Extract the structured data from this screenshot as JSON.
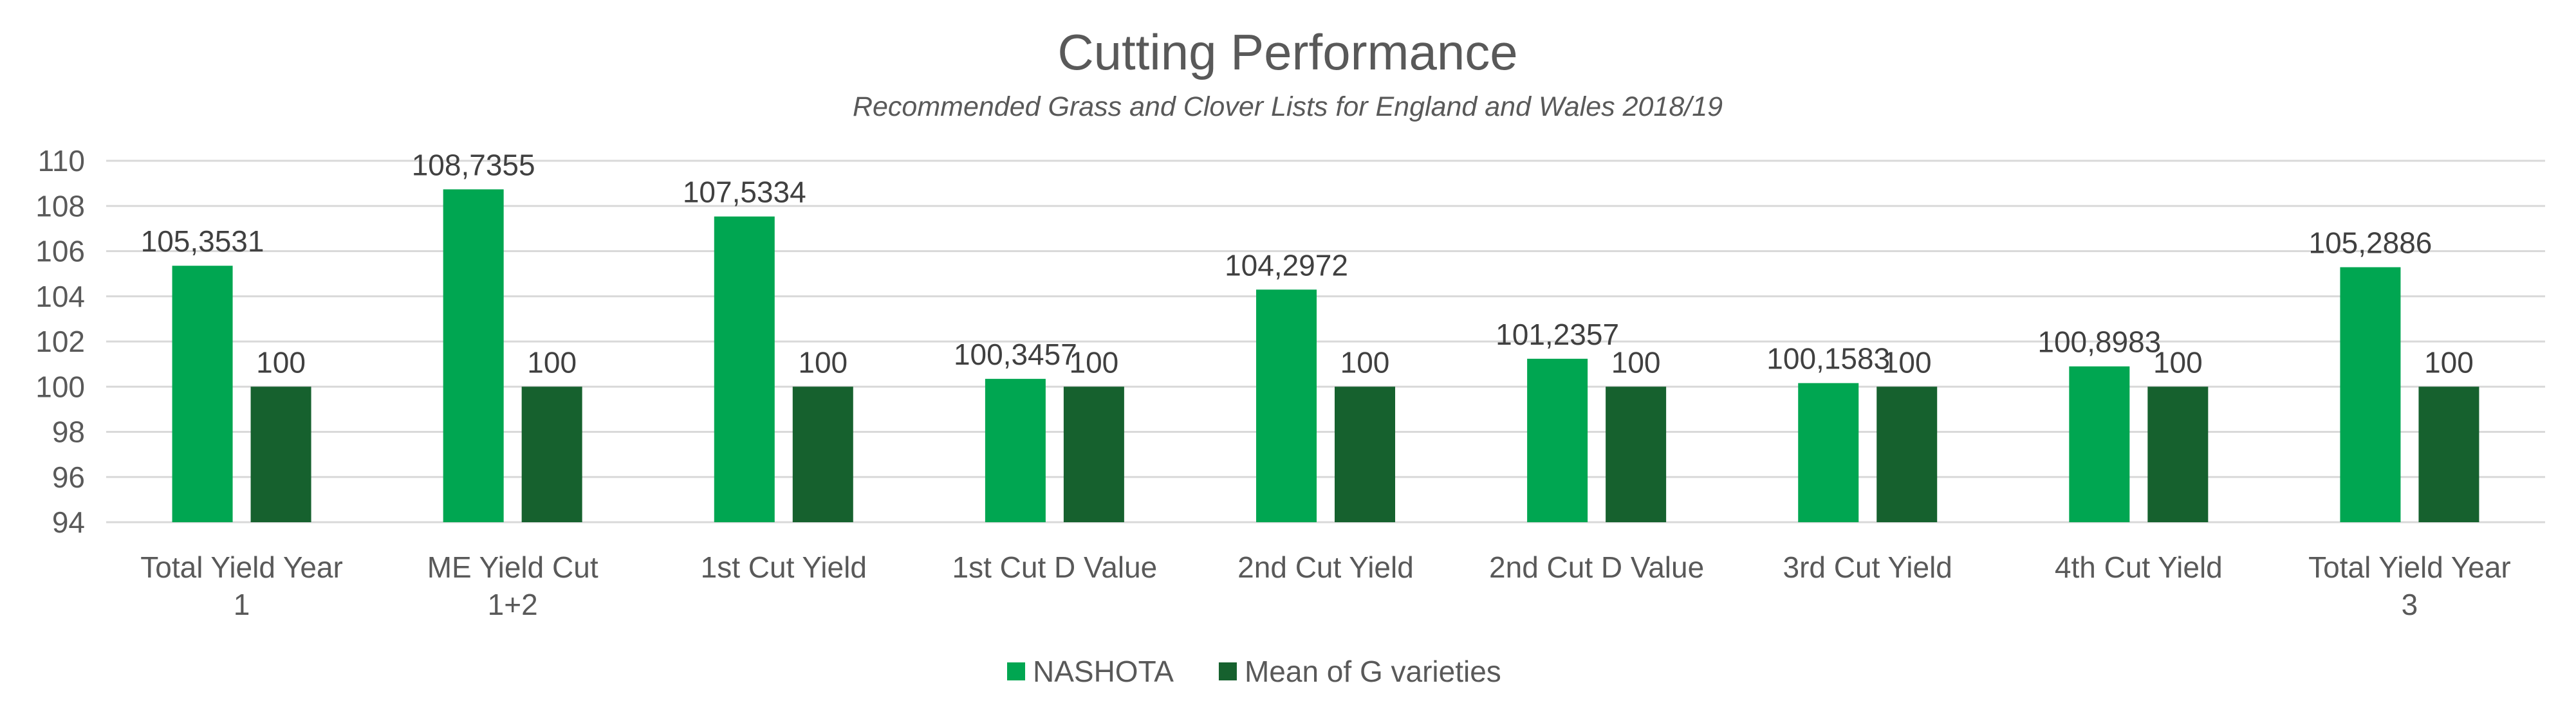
{
  "chart_data": {
    "type": "bar",
    "title": "Cutting Performance",
    "subtitle": "Recommended Grass and Clover Lists for England and Wales 2018/19",
    "xlabel": "",
    "ylabel": "",
    "ylim": [
      94,
      110
    ],
    "yticks": [
      "94",
      "96",
      "98",
      "100",
      "102",
      "104",
      "106",
      "108",
      "110"
    ],
    "grid": true,
    "legend_position": "bottom",
    "categories": [
      [
        "Total Yield Year",
        "1"
      ],
      [
        "ME Yield Cut",
        "1+2"
      ],
      [
        "1st Cut Yield"
      ],
      [
        "1st Cut D Value"
      ],
      [
        "2nd Cut Yield"
      ],
      [
        "2nd Cut D Value"
      ],
      [
        "3rd Cut Yield"
      ],
      [
        "4th Cut Yield"
      ],
      [
        "Total Yield Year",
        "3"
      ]
    ],
    "series": [
      {
        "name": "NASHOTA",
        "color": "#00A651",
        "values": [
          105.3531,
          108.7355,
          107.5334,
          100.3457,
          104.2972,
          101.2357,
          100.1583,
          100.8983,
          105.2886
        ],
        "labels": [
          "105,3531",
          "108,7355",
          "107,5334",
          "100,3457",
          "104,2972",
          "101,2357",
          "100,1583",
          "100,8983",
          "105,2886"
        ]
      },
      {
        "name": "Mean of G varieties",
        "color": "#16612E",
        "values": [
          100,
          100,
          100,
          100,
          100,
          100,
          100,
          100,
          100
        ],
        "labels": [
          "100",
          "100",
          "100",
          "100",
          "100",
          "100",
          "100",
          "100",
          "100"
        ]
      }
    ]
  }
}
